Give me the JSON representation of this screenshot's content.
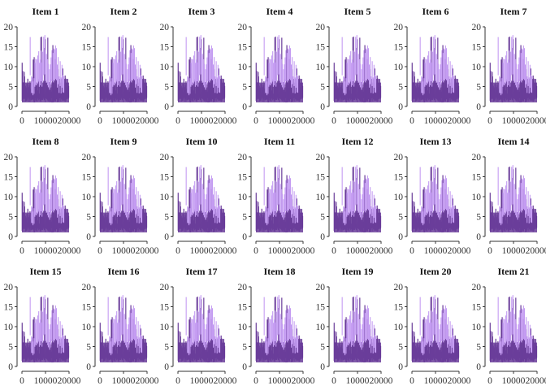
{
  "chart_data": {
    "type": "bar",
    "title": "",
    "xlabel": "",
    "ylabel": "",
    "xlim": [
      0,
      20000
    ],
    "ylim": [
      0,
      20
    ],
    "x_ticks": [
      0,
      10000,
      20000
    ],
    "y_ticks": [
      0,
      5,
      10,
      15,
      20
    ],
    "x_tick_labels": [
      "0",
      "10000",
      "20000"
    ],
    "y_tick_labels": [
      "0",
      "5",
      "10",
      "15",
      "20"
    ],
    "grid": false,
    "legend": "none",
    "colors": {
      "dark": "#6a3d9a",
      "light": "#c49cf2"
    },
    "panels": [
      "Item 1",
      "Item 2",
      "Item 3",
      "Item 4",
      "Item 5",
      "Item 6",
      "Item 7",
      "Item 8",
      "Item 9",
      "Item 10",
      "Item 11",
      "Item 12",
      "Item 13",
      "Item 14",
      "Item 15",
      "Item 16",
      "Item 17",
      "Item 18",
      "Item 19",
      "Item 20",
      "Item 21"
    ],
    "series": [
      {
        "color": "dark",
        "x": [
          0,
          1000,
          2000,
          3000,
          4000,
          4500,
          5000,
          6000,
          7000,
          8000,
          8500,
          9000,
          10000,
          11000,
          12000,
          12500,
          13000,
          14000,
          15000,
          16000,
          17000,
          18000,
          19000,
          20000
        ],
        "values": [
          12,
          9,
          7,
          7,
          7,
          10,
          15,
          6,
          6,
          18,
          19,
          19,
          20,
          19,
          18,
          17,
          16,
          13,
          10,
          9,
          12,
          9,
          8,
          6
        ]
      },
      {
        "color": "light",
        "x": [
          3500,
          4000,
          4500,
          9000,
          10000,
          10500,
          11000,
          12000,
          13500,
          14000,
          15000,
          16500,
          17000,
          18000
        ],
        "values": [
          20,
          12,
          10,
          17,
          20,
          19,
          17,
          14,
          20,
          18,
          14,
          11,
          12,
          10
        ]
      }
    ]
  }
}
